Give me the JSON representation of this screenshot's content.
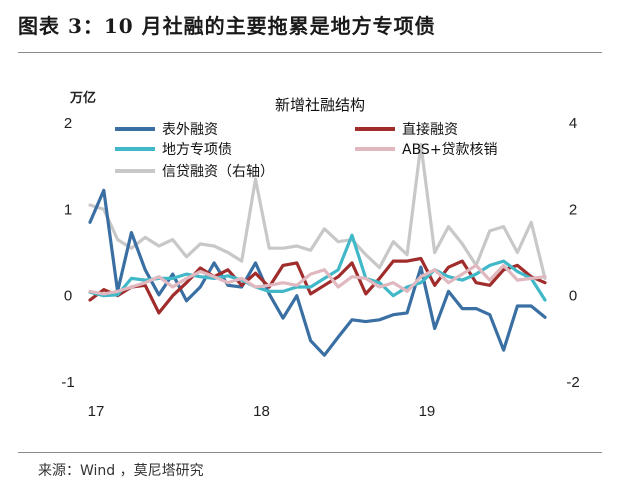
{
  "figure_title": "图表 3：10 月社融的主要拖累是地方专项债",
  "source": "来源：Wind ，莫尼塔研究",
  "chart_data": {
    "type": "line",
    "title": "新增社融结构",
    "left_unit": "万亿",
    "ylim": [
      -1,
      2
    ],
    "y2lim": [
      -2,
      4
    ],
    "yticks": [
      "-1",
      "0",
      "1",
      "2"
    ],
    "y2ticks": [
      "-2",
      "0",
      "2",
      "4"
    ],
    "x_ticks": [
      {
        "label": "17",
        "index": 0
      },
      {
        "label": "18",
        "index": 12
      },
      {
        "label": "19",
        "index": 24
      }
    ],
    "legend_position": "top",
    "series": [
      {
        "name": "表外融资",
        "color": "#3a6fa3",
        "axis": "left",
        "values": [
          0.85,
          1.22,
          0.05,
          0.73,
          0.3,
          0.01,
          0.25,
          -0.06,
          0.1,
          0.38,
          0.12,
          0.1,
          0.38,
          0.02,
          -0.26,
          0.0,
          -0.52,
          -0.69,
          -0.48,
          -0.28,
          -0.3,
          -0.28,
          -0.22,
          -0.2,
          0.33,
          -0.38,
          0.05,
          -0.15,
          -0.15,
          -0.22,
          -0.63,
          -0.12,
          -0.12,
          -0.25
        ]
      },
      {
        "name": "直接融资",
        "color": "#a02c2c",
        "axis": "left",
        "values": [
          -0.05,
          0.07,
          0.0,
          0.1,
          0.12,
          -0.2,
          0.0,
          0.15,
          0.32,
          0.22,
          0.3,
          0.12,
          0.26,
          0.1,
          0.35,
          0.38,
          0.02,
          0.12,
          0.22,
          0.38,
          0.02,
          0.2,
          0.4,
          0.4,
          0.43,
          0.12,
          0.33,
          0.4,
          0.15,
          0.12,
          0.3,
          0.35,
          0.22,
          0.15
        ]
      },
      {
        "name": "地方专项债",
        "color": "#40b8c8",
        "axis": "left",
        "values": [
          0.04,
          0.0,
          0.01,
          0.2,
          0.18,
          0.2,
          0.2,
          0.25,
          0.22,
          0.2,
          0.23,
          0.18,
          0.1,
          0.05,
          0.05,
          0.1,
          0.1,
          0.2,
          0.3,
          0.7,
          0.2,
          0.15,
          0.0,
          0.1,
          0.15,
          0.3,
          0.22,
          0.18,
          0.25,
          0.35,
          0.4,
          0.28,
          0.2,
          -0.05
        ]
      },
      {
        "name": "ABS+贷款核销",
        "color": "#e0b8bf",
        "axis": "left",
        "values": [
          0.05,
          0.02,
          0.05,
          0.1,
          0.15,
          0.22,
          0.1,
          0.2,
          0.28,
          0.22,
          0.15,
          0.2,
          0.1,
          0.12,
          0.15,
          0.12,
          0.25,
          0.3,
          0.1,
          0.22,
          0.2,
          0.1,
          0.15,
          0.05,
          0.22,
          0.3,
          0.15,
          0.25,
          0.35,
          0.18,
          0.35,
          0.18,
          0.2,
          0.22
        ]
      },
      {
        "name": "信贷融资（右轴）",
        "color": "#c8c8c8",
        "axis": "right",
        "values": [
          2.1,
          2.0,
          1.3,
          1.1,
          1.35,
          1.15,
          1.3,
          0.9,
          1.2,
          1.15,
          1.0,
          0.8,
          2.7,
          1.1,
          1.1,
          1.15,
          1.05,
          1.55,
          1.25,
          1.3,
          0.95,
          0.65,
          1.25,
          0.95,
          3.5,
          1.0,
          1.6,
          1.2,
          0.7,
          1.5,
          1.6,
          1.0,
          1.7,
          0.4
        ]
      }
    ]
  }
}
